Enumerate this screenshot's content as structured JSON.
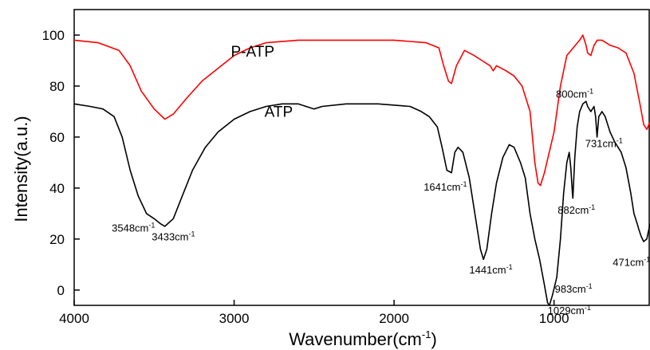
{
  "chart_data": {
    "type": "line",
    "xlabel": "Wavenumber(cm",
    "xlabel_sup": "-1",
    "xlabel_suffix": ")",
    "ylabel": "Intensity(a.u.)",
    "xlim": [
      4000,
      400
    ],
    "ylim": [
      -6,
      110
    ],
    "x_ticks": [
      4000,
      3000,
      2000,
      1000
    ],
    "y_ticks": [
      0,
      20,
      40,
      60,
      80,
      100
    ],
    "grid": false,
    "series": [
      {
        "name": "P-ATP",
        "color": "#ff0000",
        "points": [
          [
            4000,
            98
          ],
          [
            3850,
            97
          ],
          [
            3720,
            94
          ],
          [
            3650,
            88
          ],
          [
            3580,
            78
          ],
          [
            3500,
            71
          ],
          [
            3433,
            67
          ],
          [
            3380,
            69
          ],
          [
            3300,
            75
          ],
          [
            3200,
            82
          ],
          [
            3100,
            87
          ],
          [
            3000,
            92
          ],
          [
            2900,
            95
          ],
          [
            2800,
            97
          ],
          [
            2600,
            98
          ],
          [
            2400,
            98
          ],
          [
            2200,
            98
          ],
          [
            2000,
            98
          ],
          [
            1800,
            97
          ],
          [
            1720,
            95
          ],
          [
            1690,
            88
          ],
          [
            1660,
            82
          ],
          [
            1641,
            81
          ],
          [
            1610,
            88
          ],
          [
            1560,
            94
          ],
          [
            1500,
            92
          ],
          [
            1450,
            90
          ],
          [
            1400,
            88
          ],
          [
            1380,
            86
          ],
          [
            1360,
            88
          ],
          [
            1300,
            86
          ],
          [
            1250,
            84
          ],
          [
            1200,
            80
          ],
          [
            1150,
            70
          ],
          [
            1120,
            50
          ],
          [
            1100,
            42
          ],
          [
            1085,
            41
          ],
          [
            1060,
            46
          ],
          [
            1000,
            62
          ],
          [
            960,
            80
          ],
          [
            920,
            92
          ],
          [
            880,
            95
          ],
          [
            840,
            98
          ],
          [
            820,
            100
          ],
          [
            800,
            96
          ],
          [
            790,
            93
          ],
          [
            770,
            92
          ],
          [
            750,
            96
          ],
          [
            730,
            98
          ],
          [
            700,
            98
          ],
          [
            650,
            96
          ],
          [
            600,
            95
          ],
          [
            550,
            93
          ],
          [
            500,
            85
          ],
          [
            460,
            72
          ],
          [
            440,
            65
          ],
          [
            420,
            63
          ],
          [
            400,
            66
          ]
        ]
      },
      {
        "name": "ATP",
        "color": "#000000",
        "points": [
          [
            4000,
            73
          ],
          [
            3900,
            72
          ],
          [
            3820,
            71
          ],
          [
            3750,
            68
          ],
          [
            3700,
            60
          ],
          [
            3650,
            47
          ],
          [
            3600,
            37
          ],
          [
            3548,
            30
          ],
          [
            3500,
            28
          ],
          [
            3460,
            26
          ],
          [
            3433,
            25
          ],
          [
            3380,
            28
          ],
          [
            3330,
            36
          ],
          [
            3260,
            47
          ],
          [
            3180,
            56
          ],
          [
            3100,
            62
          ],
          [
            3000,
            67
          ],
          [
            2900,
            70
          ],
          [
            2800,
            72
          ],
          [
            2700,
            73
          ],
          [
            2600,
            73
          ],
          [
            2550,
            72
          ],
          [
            2500,
            71
          ],
          [
            2450,
            72
          ],
          [
            2300,
            73
          ],
          [
            2100,
            73
          ],
          [
            1900,
            72
          ],
          [
            1830,
            70
          ],
          [
            1780,
            68
          ],
          [
            1730,
            64
          ],
          [
            1700,
            56
          ],
          [
            1670,
            47
          ],
          [
            1641,
            46
          ],
          [
            1620,
            54
          ],
          [
            1600,
            56
          ],
          [
            1570,
            54
          ],
          [
            1530,
            44
          ],
          [
            1490,
            28
          ],
          [
            1460,
            16
          ],
          [
            1441,
            12
          ],
          [
            1420,
            16
          ],
          [
            1390,
            30
          ],
          [
            1360,
            42
          ],
          [
            1320,
            52
          ],
          [
            1280,
            57
          ],
          [
            1250,
            56
          ],
          [
            1210,
            50
          ],
          [
            1180,
            44
          ],
          [
            1150,
            30
          ],
          [
            1120,
            20
          ],
          [
            1090,
            12
          ],
          [
            1060,
            2
          ],
          [
            1040,
            -5
          ],
          [
            1029,
            -6
          ],
          [
            1010,
            -2
          ],
          [
            983,
            5
          ],
          [
            960,
            20
          ],
          [
            940,
            38
          ],
          [
            920,
            50
          ],
          [
            905,
            54
          ],
          [
            895,
            48
          ],
          [
            885,
            38
          ],
          [
            882,
            36
          ],
          [
            870,
            52
          ],
          [
            855,
            64
          ],
          [
            840,
            70
          ],
          [
            820,
            73
          ],
          [
            800,
            74
          ],
          [
            790,
            72
          ],
          [
            770,
            70
          ],
          [
            750,
            72
          ],
          [
            740,
            68
          ],
          [
            731,
            60
          ],
          [
            720,
            68
          ],
          [
            700,
            70
          ],
          [
            680,
            68
          ],
          [
            650,
            62
          ],
          [
            620,
            58
          ],
          [
            580,
            54
          ],
          [
            550,
            48
          ],
          [
            520,
            38
          ],
          [
            500,
            30
          ],
          [
            480,
            26
          ],
          [
            471,
            24
          ],
          [
            455,
            21
          ],
          [
            440,
            19
          ],
          [
            420,
            20
          ],
          [
            400,
            26
          ]
        ]
      }
    ],
    "labels": [
      {
        "text": "P-ATP",
        "x": 3020,
        "y": 91.5,
        "size": "large"
      },
      {
        "text": "ATP",
        "x": 2810,
        "y": 68,
        "size": "large"
      }
    ],
    "annotations": [
      {
        "base": "3548cm",
        "sup": "-1",
        "x": 3765,
        "y": 23
      },
      {
        "base": "3433cm",
        "sup": "-1",
        "x": 3515,
        "y": 19.5
      },
      {
        "base": "1641cm",
        "sup": "-1",
        "x": 1815,
        "y": 39
      },
      {
        "base": "1441cm",
        "sup": "-1",
        "x": 1530,
        "y": 6.5
      },
      {
        "base": "1029cm",
        "sup": "-1",
        "x": 1040,
        "y": -9.5
      },
      {
        "base": "983cm",
        "sup": "-1",
        "x": 995,
        "y": -1
      },
      {
        "base": "882cm",
        "sup": "-1",
        "x": 977,
        "y": 30
      },
      {
        "base": "731cm",
        "sup": "-1",
        "x": 805,
        "y": 56
      },
      {
        "base": "800cm",
        "sup": "-1",
        "x": 988,
        "y": 75.5
      },
      {
        "base": "471cm",
        "sup": "-1",
        "x": 633,
        "y": 9.5
      }
    ]
  }
}
